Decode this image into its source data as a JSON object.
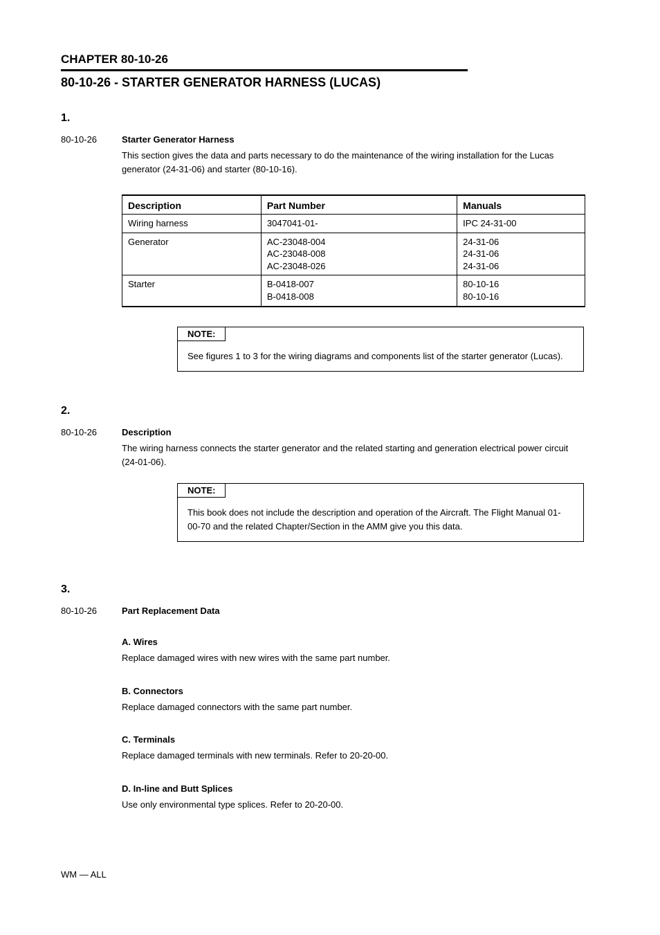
{
  "chapter": {
    "num": "CHAPTER 80-10-26",
    "title": "80-10-26 - STARTER GENERATOR HARNESS (LUCAS)"
  },
  "section1": {
    "num": "1.",
    "subtitle_label": "80-10-26",
    "subtitle_value": "Starter Generator Harness",
    "paragraph": "This section gives the data and parts necessary to do the maintenance of the wiring installation for the Lucas generator (24-31-06) and starter (80-10-16).",
    "table": {
      "headers": [
        "Description",
        "Part Number",
        "Manuals"
      ],
      "rows": [
        [
          "Wiring harness",
          "3047041-01-",
          "IPC 24-31-00"
        ],
        [
          "Generator",
          "AC-23048-004\nAC-23048-008\nAC-23048-026",
          "24-31-06\n24-31-06\n24-31-06"
        ],
        [
          "Starter",
          "B-0418-007\nB-0418-008",
          "80-10-16\n80-10-16"
        ]
      ]
    },
    "note": {
      "label": "NOTE:",
      "text": "See figures 1 to 3 for the wiring diagrams and components list of the starter generator (Lucas)."
    }
  },
  "section2": {
    "num": "2.",
    "subtitle_label": "80-10-26",
    "subtitle_value": "Description",
    "paragraph": "The wiring harness connects the starter generator and the related starting and generation electrical power circuit (24-01-06).",
    "note": {
      "label": "NOTE:",
      "text": "This book does not include the description and operation of the Aircraft. The Flight Manual 01-00-70 and the related Chapter/Section in the AMM  give you this data."
    }
  },
  "section3": {
    "num": "3.",
    "subtitle_label": "80-10-26",
    "subtitle_value": "Part Replacement Data",
    "items": [
      {
        "heading": "A. Wires",
        "text": "Replace damaged wires with new wires with the same part number."
      },
      {
        "heading": "B. Connectors",
        "text": "Replace damaged connectors with the same part number."
      },
      {
        "heading": "C. Terminals",
        "text": "Replace damaged terminals with new terminals. Refer to 20-20-00."
      },
      {
        "heading": "D. In-line and Butt Splices",
        "text": "Use only environmental type splices. Refer to 20-20-00."
      }
    ]
  },
  "footer": "WM — ALL"
}
